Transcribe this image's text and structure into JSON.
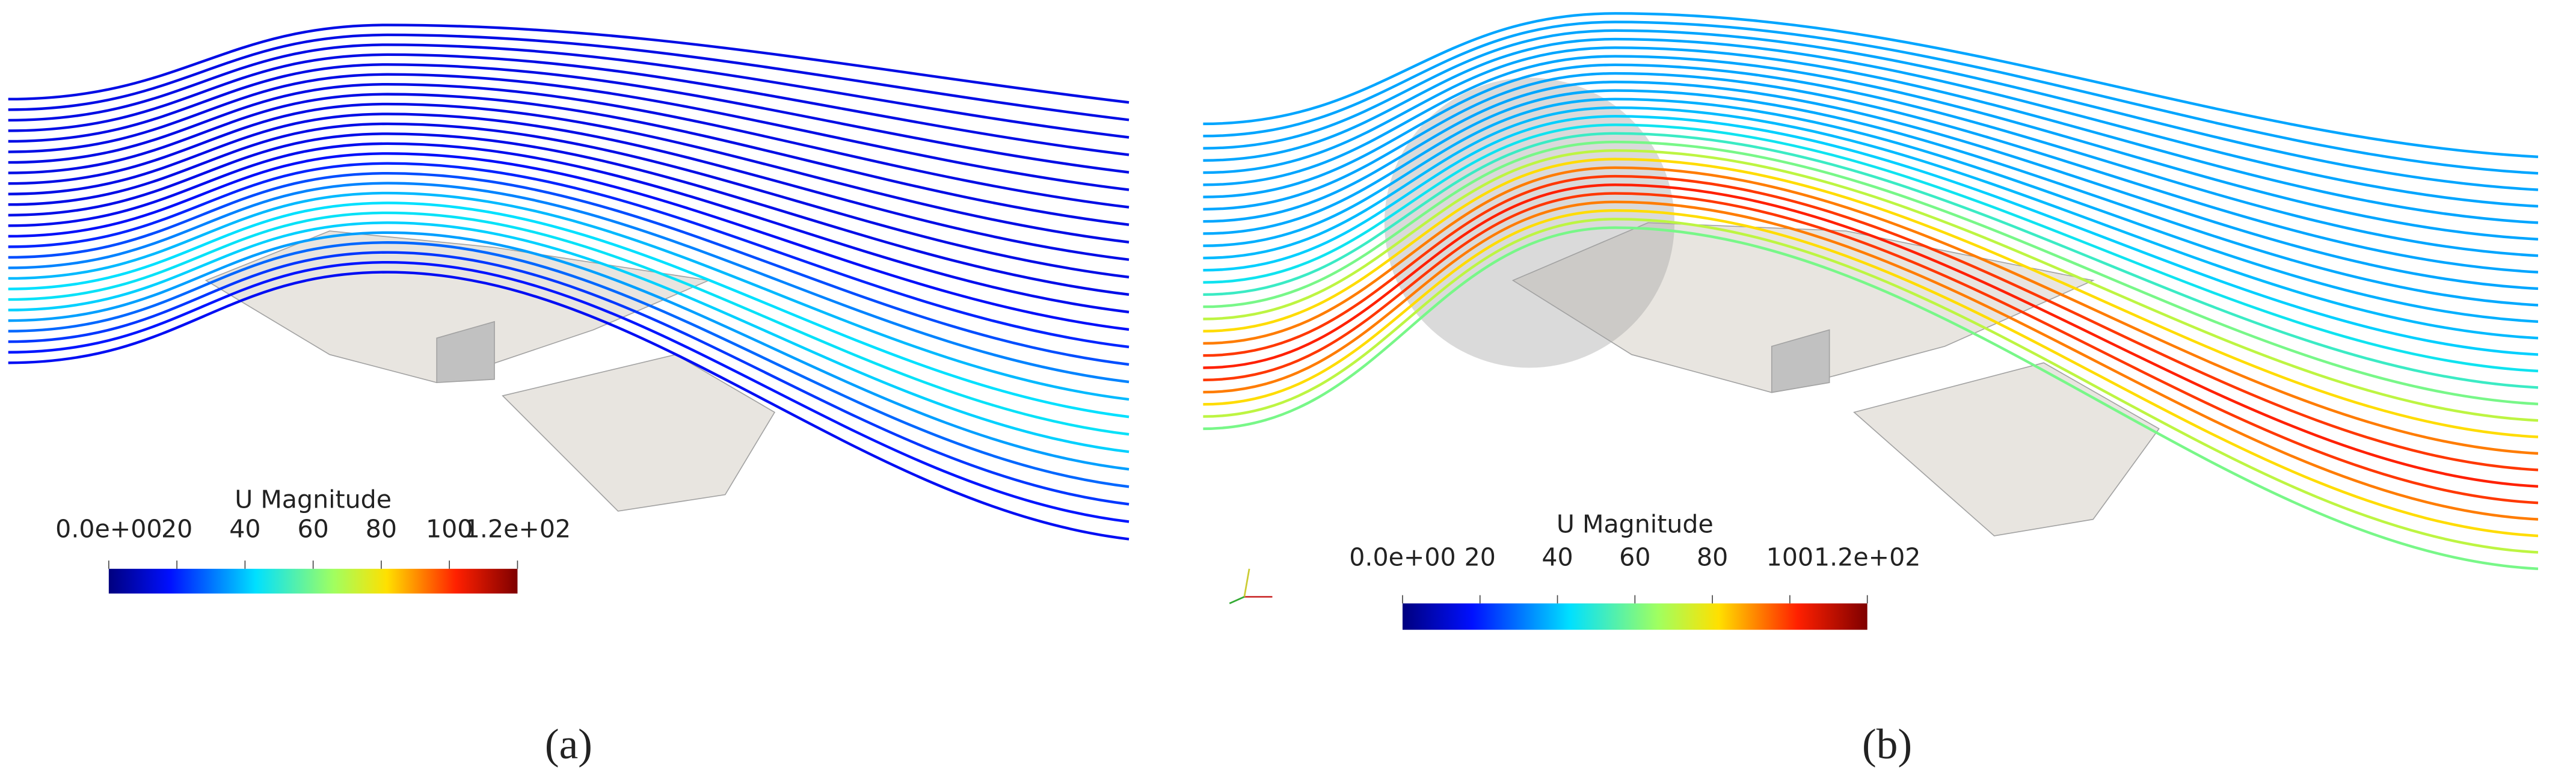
{
  "panels": [
    {
      "caption": "(a)",
      "colorbar": {
        "title": "U Magnitude",
        "range": [
          0,
          120
        ],
        "ticks": [
          {
            "value": 0,
            "label": "0.0e+00"
          },
          20,
          40,
          60,
          80,
          100,
          {
            "value": 120,
            "label": "1.2e+02"
          }
        ]
      }
    },
    {
      "caption": "(b)",
      "colorbar": {
        "title": "U Magnitude",
        "range": [
          0,
          120
        ],
        "ticks": [
          {
            "value": 0,
            "label": "0.0e+00"
          },
          20,
          40,
          60,
          80,
          100,
          {
            "value": 120,
            "label": "1.2e+02"
          }
        ]
      }
    }
  ]
}
